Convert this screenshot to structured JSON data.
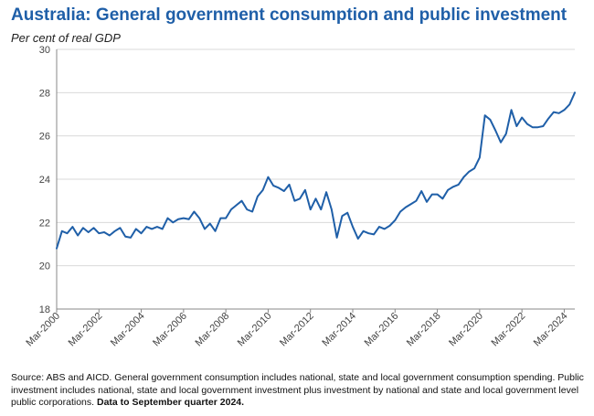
{
  "title": "Australia: General government consumption and public investment",
  "chart_data": {
    "type": "line",
    "title": "Australia: General government consumption and public investment",
    "ylabel": "Per cent of real GDP",
    "xlabel": "",
    "ylim": [
      18,
      30
    ],
    "y_ticks": [
      "18",
      "20",
      "22",
      "24",
      "26",
      "28",
      "30"
    ],
    "y_tick_values": [
      18,
      20,
      22,
      24,
      26,
      28,
      30
    ],
    "x_tick_labels": [
      "Mar-2000",
      "Mar-2002",
      "Mar-2004",
      "Mar-2006",
      "Mar-2008",
      "Mar-2010",
      "Mar-2012",
      "Mar-2014",
      "Mar-2016",
      "Mar-2018",
      "Mar-2020",
      "Mar-2022",
      "Mar-2024"
    ],
    "x_tick_years": [
      2000,
      2002,
      2004,
      2006,
      2008,
      2010,
      2012,
      2014,
      2016,
      2018,
      2020,
      2022,
      2024
    ],
    "x_range": [
      2000.0,
      2024.5
    ],
    "grid": "horizontal",
    "line_color": "#1f5fa8",
    "series": [
      {
        "name": "General government consumption and public investment",
        "x_start": 2000.0,
        "x_step": 0.25,
        "values": [
          20.8,
          21.6,
          21.5,
          21.8,
          21.4,
          21.75,
          21.55,
          21.75,
          21.5,
          21.55,
          21.4,
          21.6,
          21.75,
          21.35,
          21.3,
          21.7,
          21.5,
          21.8,
          21.7,
          21.8,
          21.7,
          22.2,
          22.0,
          22.15,
          22.2,
          22.15,
          22.5,
          22.2,
          21.7,
          21.95,
          21.6,
          22.2,
          22.2,
          22.6,
          22.8,
          23.0,
          22.6,
          22.5,
          23.2,
          23.5,
          24.1,
          23.7,
          23.6,
          23.45,
          23.75,
          23.0,
          23.1,
          23.5,
          22.6,
          23.1,
          22.6,
          23.4,
          22.6,
          21.3,
          22.3,
          22.45,
          21.8,
          21.25,
          21.6,
          21.5,
          21.45,
          21.8,
          21.7,
          21.85,
          22.1,
          22.5,
          22.7,
          22.85,
          23.0,
          23.45,
          22.95,
          23.3,
          23.3,
          23.1,
          23.5,
          23.65,
          23.75,
          24.1,
          24.35,
          24.5,
          25.0,
          26.95,
          26.75,
          26.25,
          25.7,
          26.1,
          27.2,
          26.45,
          26.85,
          26.55,
          26.4,
          26.4,
          26.45,
          26.8,
          27.1,
          27.05,
          27.2,
          27.45,
          28.0
        ]
      }
    ]
  },
  "source": {
    "text": "Source: ABS and AICD. General government consumption includes national, state and local government consumption spending.  Public investment includes national, state and local government investment plus investment by national and state and local government level public corporations.",
    "bold": "Data to September quarter 2024."
  }
}
